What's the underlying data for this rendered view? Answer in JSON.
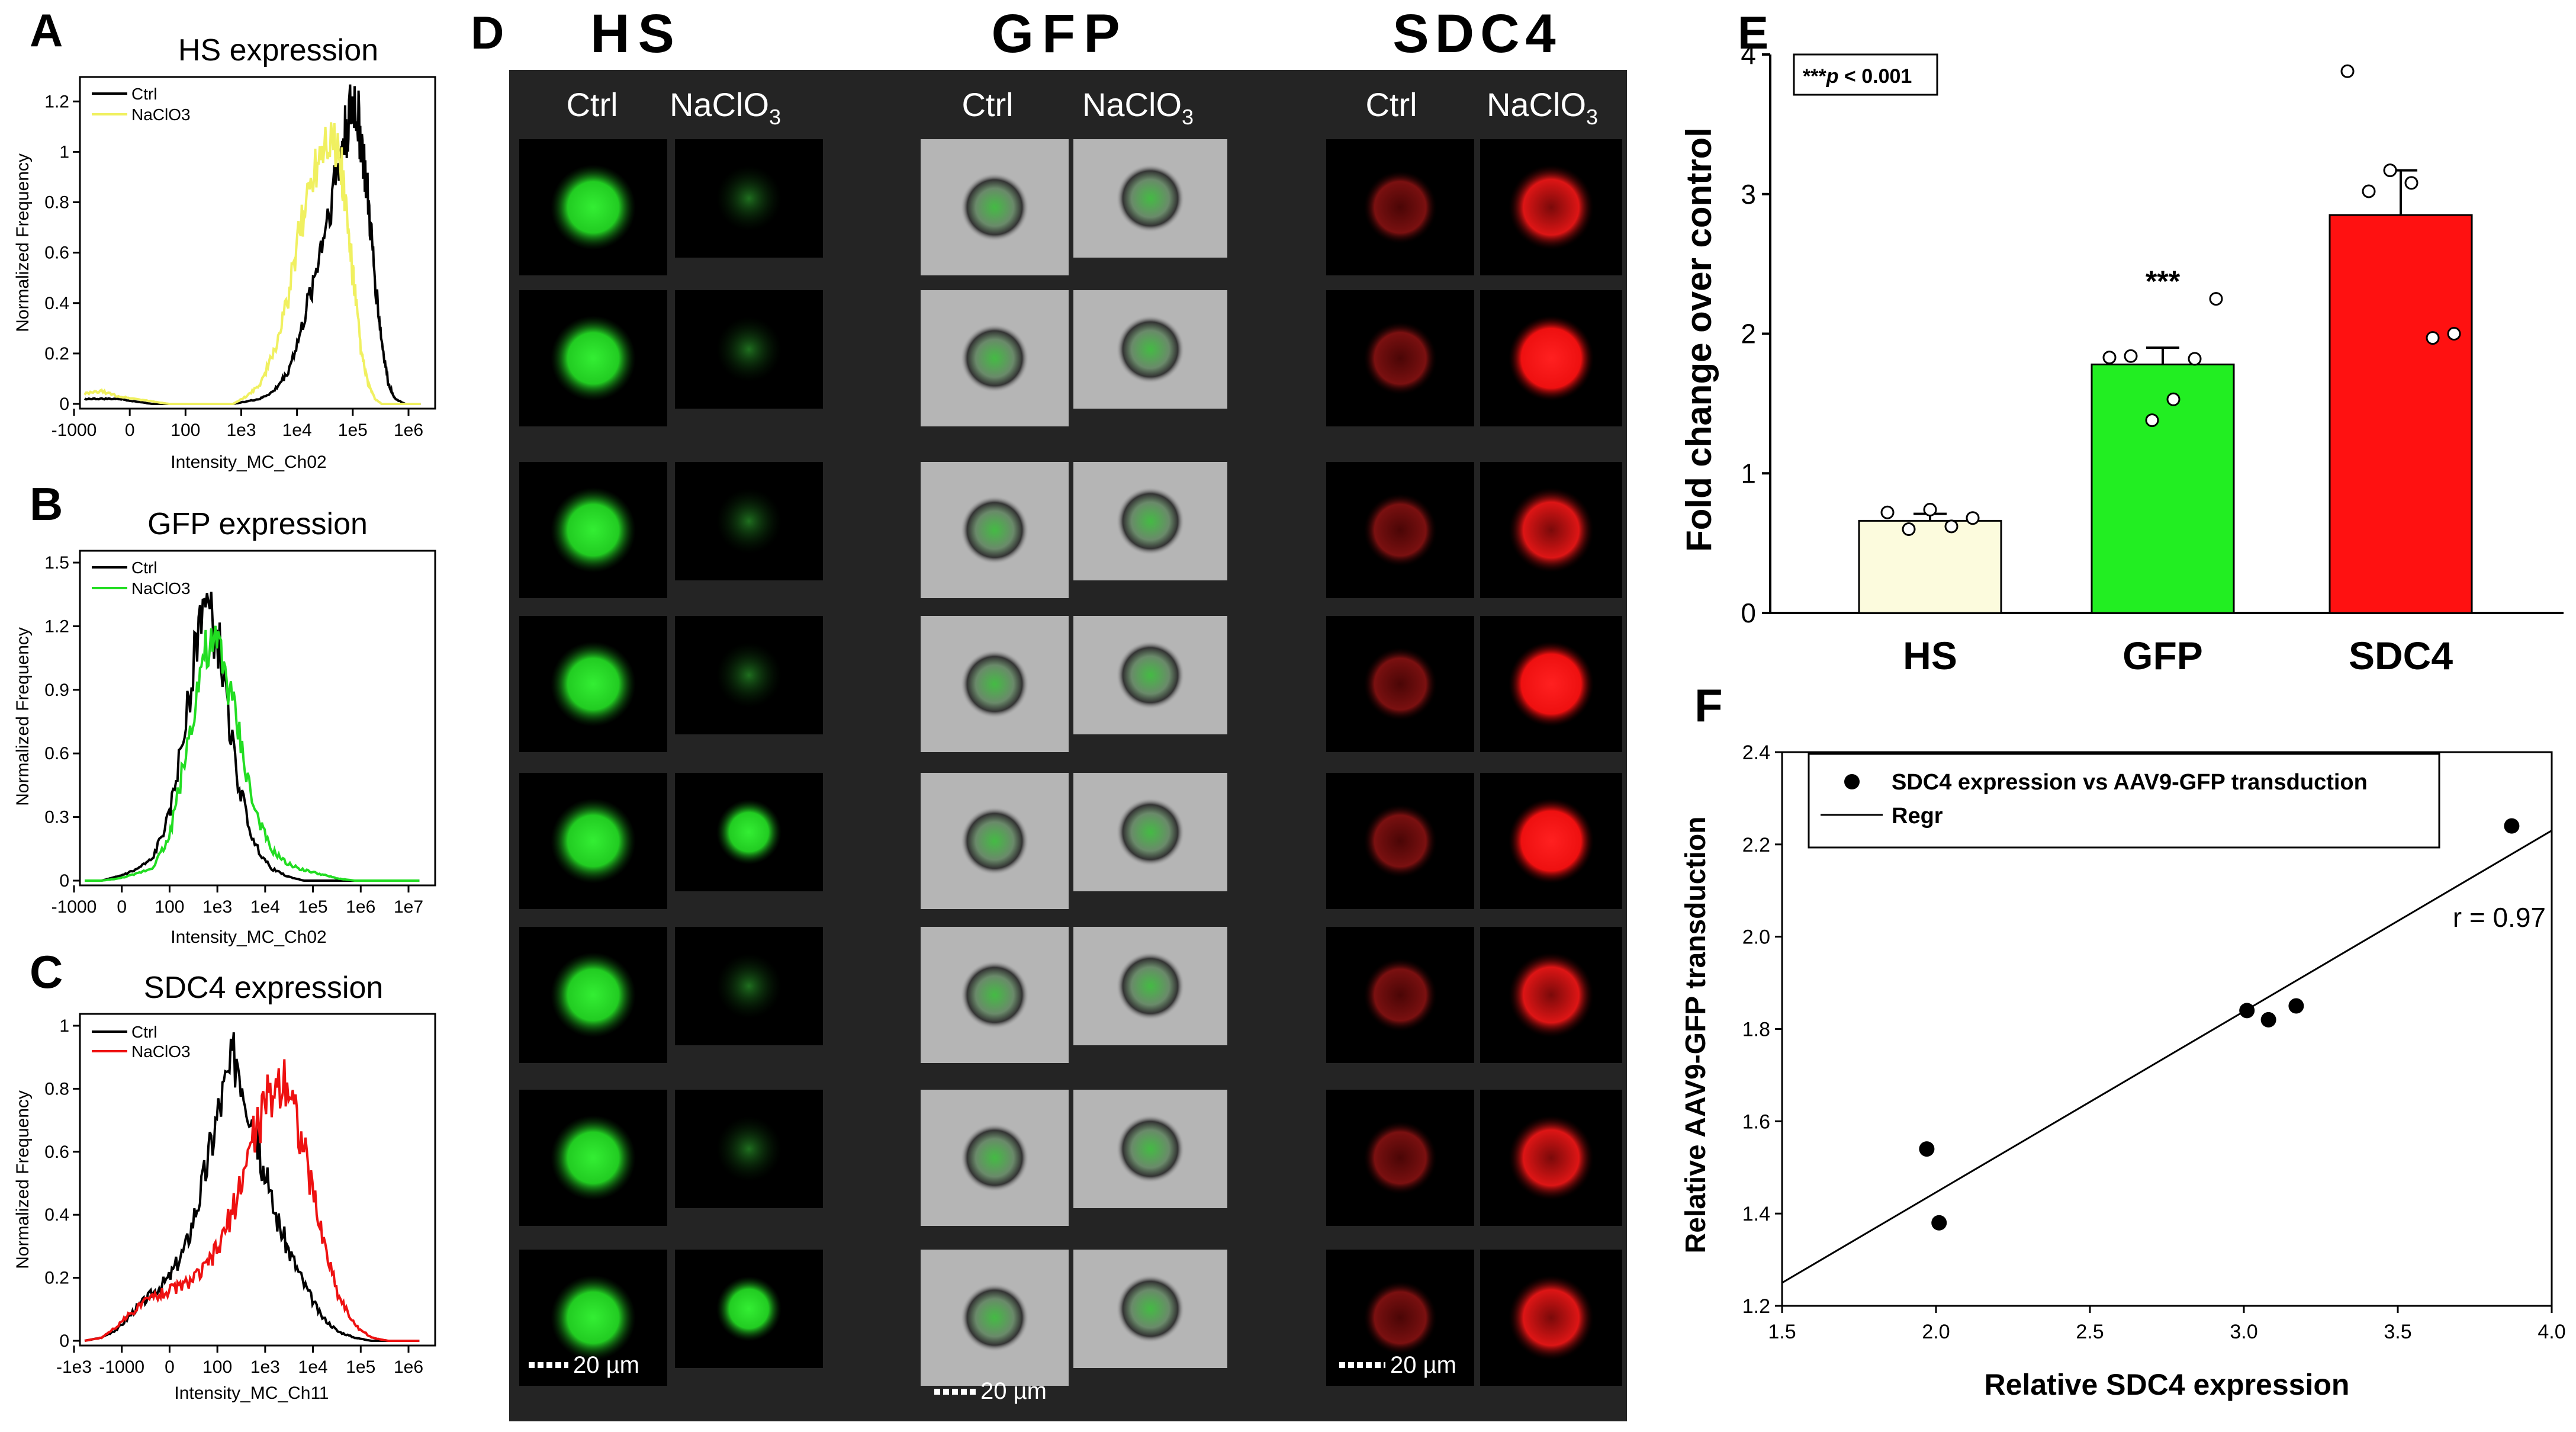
{
  "panels": {
    "A": {
      "letter": "A",
      "title": "HS expression",
      "ylabel": "Normalized Frequency",
      "xlabel": "Intensity_MC_Ch02",
      "yticks": [
        "0",
        "0.2",
        "0.4",
        "0.6",
        "0.8",
        "1",
        "1.2"
      ],
      "xticks": [
        "-1000",
        "0",
        "100",
        "1e3",
        "1e4",
        "1e5",
        "1e6"
      ],
      "legend": [
        "Ctrl",
        "NaClO3"
      ],
      "colors": [
        "#000000",
        "#f0f060"
      ]
    },
    "B": {
      "letter": "B",
      "title": "GFP expression",
      "ylabel": "Normalized Frequency",
      "xlabel": "Intensity_MC_Ch02",
      "yticks": [
        "0",
        "0.3",
        "0.6",
        "0.9",
        "1.2",
        "1.5"
      ],
      "xticks": [
        "-1000",
        "0",
        "100",
        "1e3",
        "1e4",
        "1e5",
        "1e6",
        "1e7"
      ],
      "legend": [
        "Ctrl",
        "NaClO3"
      ],
      "colors": [
        "#000000",
        "#22dd22"
      ]
    },
    "C": {
      "letter": "C",
      "title": "SDC4 expression",
      "ylabel": "Normalized Frequency",
      "xlabel": "Intensity_MC_Ch11",
      "yticks": [
        "0",
        "0.2",
        "0.4",
        "0.6",
        "0.8",
        "1"
      ],
      "xticks": [
        "-1e3",
        "-1000",
        "0",
        "100",
        "1e3",
        "1e4",
        "1e5",
        "1e6"
      ],
      "legend": [
        "Ctrl",
        "NaClO3"
      ],
      "colors": [
        "#000000",
        "#ee1111"
      ]
    },
    "D": {
      "letter": "D",
      "groups": [
        {
          "title": "HS",
          "col_ctrl": "Ctrl",
          "col_treat": "NaClO",
          "sub": "3",
          "scale": "20 µm"
        },
        {
          "title": "GFP",
          "col_ctrl": "Ctrl",
          "col_treat": "NaClO",
          "sub": "3",
          "scale": "20 µm"
        },
        {
          "title": "SDC4",
          "col_ctrl": "Ctrl",
          "col_treat": "NaClO",
          "sub": "3",
          "scale": "20 µm"
        }
      ]
    },
    "E": {
      "letter": "E",
      "sig_note": "***p < 0.001",
      "sig_stars": "***",
      "p_text": "p",
      "p_rest": " < 0.001",
      "bar_star": "***"
    },
    "F": {
      "letter": "F",
      "r_text": "r = 0.97"
    }
  },
  "chart_data": [
    {
      "type": "bar",
      "panel": "E",
      "categories": [
        "HS",
        "GFP",
        "SDC4"
      ],
      "values": [
        0.66,
        1.78,
        2.85
      ],
      "errors": [
        0.05,
        0.12,
        0.32
      ],
      "colors": [
        "#fcfbdd",
        "#22ee22",
        "#ff1111"
      ],
      "points": [
        [
          0.72,
          0.6,
          0.74,
          0.62,
          0.68
        ],
        [
          1.83,
          1.84,
          1.38,
          1.53,
          1.82,
          2.25
        ],
        [
          3.88,
          3.02,
          3.17,
          3.08,
          1.97,
          2.0
        ]
      ],
      "ylabel": "Fold change over control",
      "ylim": [
        0,
        4
      ],
      "yticks": [
        0,
        1,
        2,
        3,
        4
      ],
      "annotation": "***"
    },
    {
      "type": "scatter",
      "panel": "F",
      "x": [
        1.97,
        2.01,
        3.01,
        3.08,
        3.17,
        3.87
      ],
      "y": [
        1.54,
        1.38,
        1.84,
        1.82,
        1.85,
        2.24
      ],
      "xlabel": "Relative SDC4 expression",
      "ylabel": "Relative AAV9-GFP transduction",
      "xlim": [
        1.5,
        4.0
      ],
      "ylim": [
        1.2,
        2.4
      ],
      "xticks": [
        1.5,
        2.0,
        2.5,
        3.0,
        3.5,
        4.0
      ],
      "yticks": [
        1.2,
        1.4,
        1.6,
        1.8,
        2.0,
        2.2,
        2.4
      ],
      "legend": [
        "SDC4 expression vs AAV9-GFP transduction",
        "Regr"
      ],
      "regression": {
        "x": [
          1.5,
          4.0
        ],
        "y": [
          1.25,
          2.23
        ]
      },
      "r": "r = 0.97"
    },
    {
      "type": "line",
      "panel": "A",
      "series": [
        {
          "name": "Ctrl",
          "x": [
            0.0,
            0.05,
            0.1,
            0.15,
            0.2,
            0.25,
            0.3,
            0.33,
            0.36,
            0.4,
            0.44,
            0.48,
            0.52,
            0.56,
            0.6,
            0.64,
            0.68,
            0.72,
            0.76,
            0.78,
            0.8,
            0.82,
            0.84,
            0.86,
            0.88,
            0.9,
            0.92,
            0.95,
            1.0
          ],
          "y": [
            0.02,
            0.02,
            0.02,
            0.01,
            0.0,
            0.0,
            0.0,
            0.0,
            0.0,
            0.0,
            0.0,
            0.01,
            0.02,
            0.05,
            0.12,
            0.28,
            0.5,
            0.75,
            1.0,
            1.12,
            1.2,
            1.05,
            0.8,
            0.5,
            0.25,
            0.08,
            0.02,
            0.0,
            0.0
          ]
        },
        {
          "name": "NaClO3",
          "x": [
            0.0,
            0.05,
            0.1,
            0.15,
            0.2,
            0.25,
            0.3,
            0.33,
            0.36,
            0.4,
            0.44,
            0.48,
            0.52,
            0.56,
            0.6,
            0.64,
            0.68,
            0.72,
            0.76,
            0.78,
            0.8,
            0.82,
            0.84,
            0.86,
            0.88,
            0.9,
            0.92,
            0.95,
            1.0
          ],
          "y": [
            0.04,
            0.05,
            0.03,
            0.02,
            0.01,
            0.0,
            0.0,
            0.0,
            0.0,
            0.0,
            0.0,
            0.03,
            0.08,
            0.2,
            0.4,
            0.7,
            0.95,
            1.1,
            0.95,
            0.7,
            0.45,
            0.2,
            0.08,
            0.02,
            0.0,
            0.0,
            0.0,
            0.0,
            0.0
          ]
        }
      ],
      "ylim": [
        0,
        1.25
      ]
    },
    {
      "type": "line",
      "panel": "B",
      "series": [
        {
          "name": "Ctrl",
          "x": [
            0.0,
            0.05,
            0.1,
            0.15,
            0.2,
            0.25,
            0.3,
            0.35,
            0.4,
            0.45,
            0.5,
            0.55,
            0.6,
            0.65,
            0.7,
            0.75,
            0.8,
            0.9,
            1.0
          ],
          "y": [
            0.0,
            0.0,
            0.02,
            0.05,
            0.1,
            0.3,
            0.75,
            1.35,
            1.1,
            0.5,
            0.18,
            0.06,
            0.02,
            0.0,
            0.0,
            0.0,
            0.0,
            0.0,
            0.0
          ]
        },
        {
          "name": "NaClO3",
          "x": [
            0.0,
            0.05,
            0.1,
            0.15,
            0.2,
            0.25,
            0.3,
            0.35,
            0.4,
            0.45,
            0.5,
            0.55,
            0.6,
            0.65,
            0.7,
            0.75,
            0.8,
            0.9,
            1.0
          ],
          "y": [
            0.0,
            0.0,
            0.01,
            0.03,
            0.06,
            0.2,
            0.6,
            1.05,
            1.1,
            0.75,
            0.35,
            0.15,
            0.08,
            0.05,
            0.03,
            0.01,
            0.0,
            0.0,
            0.0
          ]
        }
      ],
      "ylim": [
        0,
        1.5
      ]
    },
    {
      "type": "line",
      "panel": "C",
      "series": [
        {
          "name": "Ctrl",
          "x": [
            0.0,
            0.05,
            0.1,
            0.15,
            0.2,
            0.25,
            0.3,
            0.35,
            0.4,
            0.45,
            0.5,
            0.55,
            0.6,
            0.65,
            0.7,
            0.75,
            0.8,
            0.85,
            0.9,
            1.0
          ],
          "y": [
            0.0,
            0.01,
            0.04,
            0.1,
            0.15,
            0.2,
            0.3,
            0.5,
            0.75,
            0.92,
            0.7,
            0.45,
            0.3,
            0.18,
            0.08,
            0.03,
            0.01,
            0.0,
            0.0,
            0.0
          ]
        },
        {
          "name": "NaClO3",
          "x": [
            0.0,
            0.05,
            0.1,
            0.15,
            0.2,
            0.25,
            0.3,
            0.35,
            0.4,
            0.45,
            0.5,
            0.55,
            0.6,
            0.65,
            0.7,
            0.75,
            0.8,
            0.85,
            0.9,
            1.0
          ],
          "y": [
            0.0,
            0.01,
            0.05,
            0.1,
            0.14,
            0.16,
            0.18,
            0.22,
            0.3,
            0.45,
            0.65,
            0.78,
            0.85,
            0.6,
            0.35,
            0.15,
            0.05,
            0.01,
            0.0,
            0.0
          ]
        }
      ],
      "ylim": [
        0,
        1.0
      ]
    }
  ]
}
